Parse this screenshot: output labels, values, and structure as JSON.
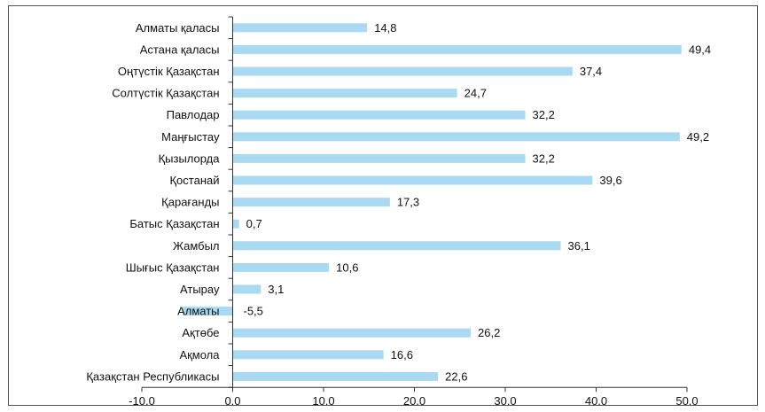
{
  "chart_data": {
    "type": "bar",
    "orientation": "horizontal",
    "title": "",
    "xlabel": "",
    "ylabel": "",
    "categories": [
      "Алматы қаласы",
      "Астана қаласы",
      "Оңтүстік Қазақстан",
      "Солтүстік Қазақстан",
      "Павлодар",
      "Маңғыстау",
      "Қызылорда",
      "Қостанай",
      "Қарағанды",
      "Батыс Қазақстан",
      "Жамбыл",
      "Шығыс Қазақстан",
      "Атырау",
      "Алматы",
      "Ақтөбе",
      "Ақмола",
      "Қазақстан Республикасы"
    ],
    "values": [
      14.8,
      49.4,
      37.4,
      24.7,
      32.2,
      49.2,
      32.2,
      39.6,
      17.3,
      0.7,
      36.1,
      10.6,
      3.1,
      -5.5,
      26.2,
      16.6,
      22.6
    ],
    "value_labels": [
      "14,8",
      "49,4",
      "37,4",
      "24,7",
      "32,2",
      "49,2",
      "32,2",
      "39,6",
      "17,3",
      "0,7",
      "36,1",
      "10,6",
      "3,1",
      "-5,5",
      "26,2",
      "16,6",
      "22,6"
    ],
    "xlim": [
      -10,
      50
    ],
    "x_ticks": [
      -10,
      0,
      10,
      20,
      30,
      40,
      50
    ],
    "x_tick_labels": [
      "-10,0",
      "0,0",
      "10,0",
      "20,0",
      "30,0",
      "40,0",
      "50,0"
    ],
    "grid": false,
    "legend": "none",
    "bar_color": "#a9daf2",
    "axis_color": "#333333"
  }
}
